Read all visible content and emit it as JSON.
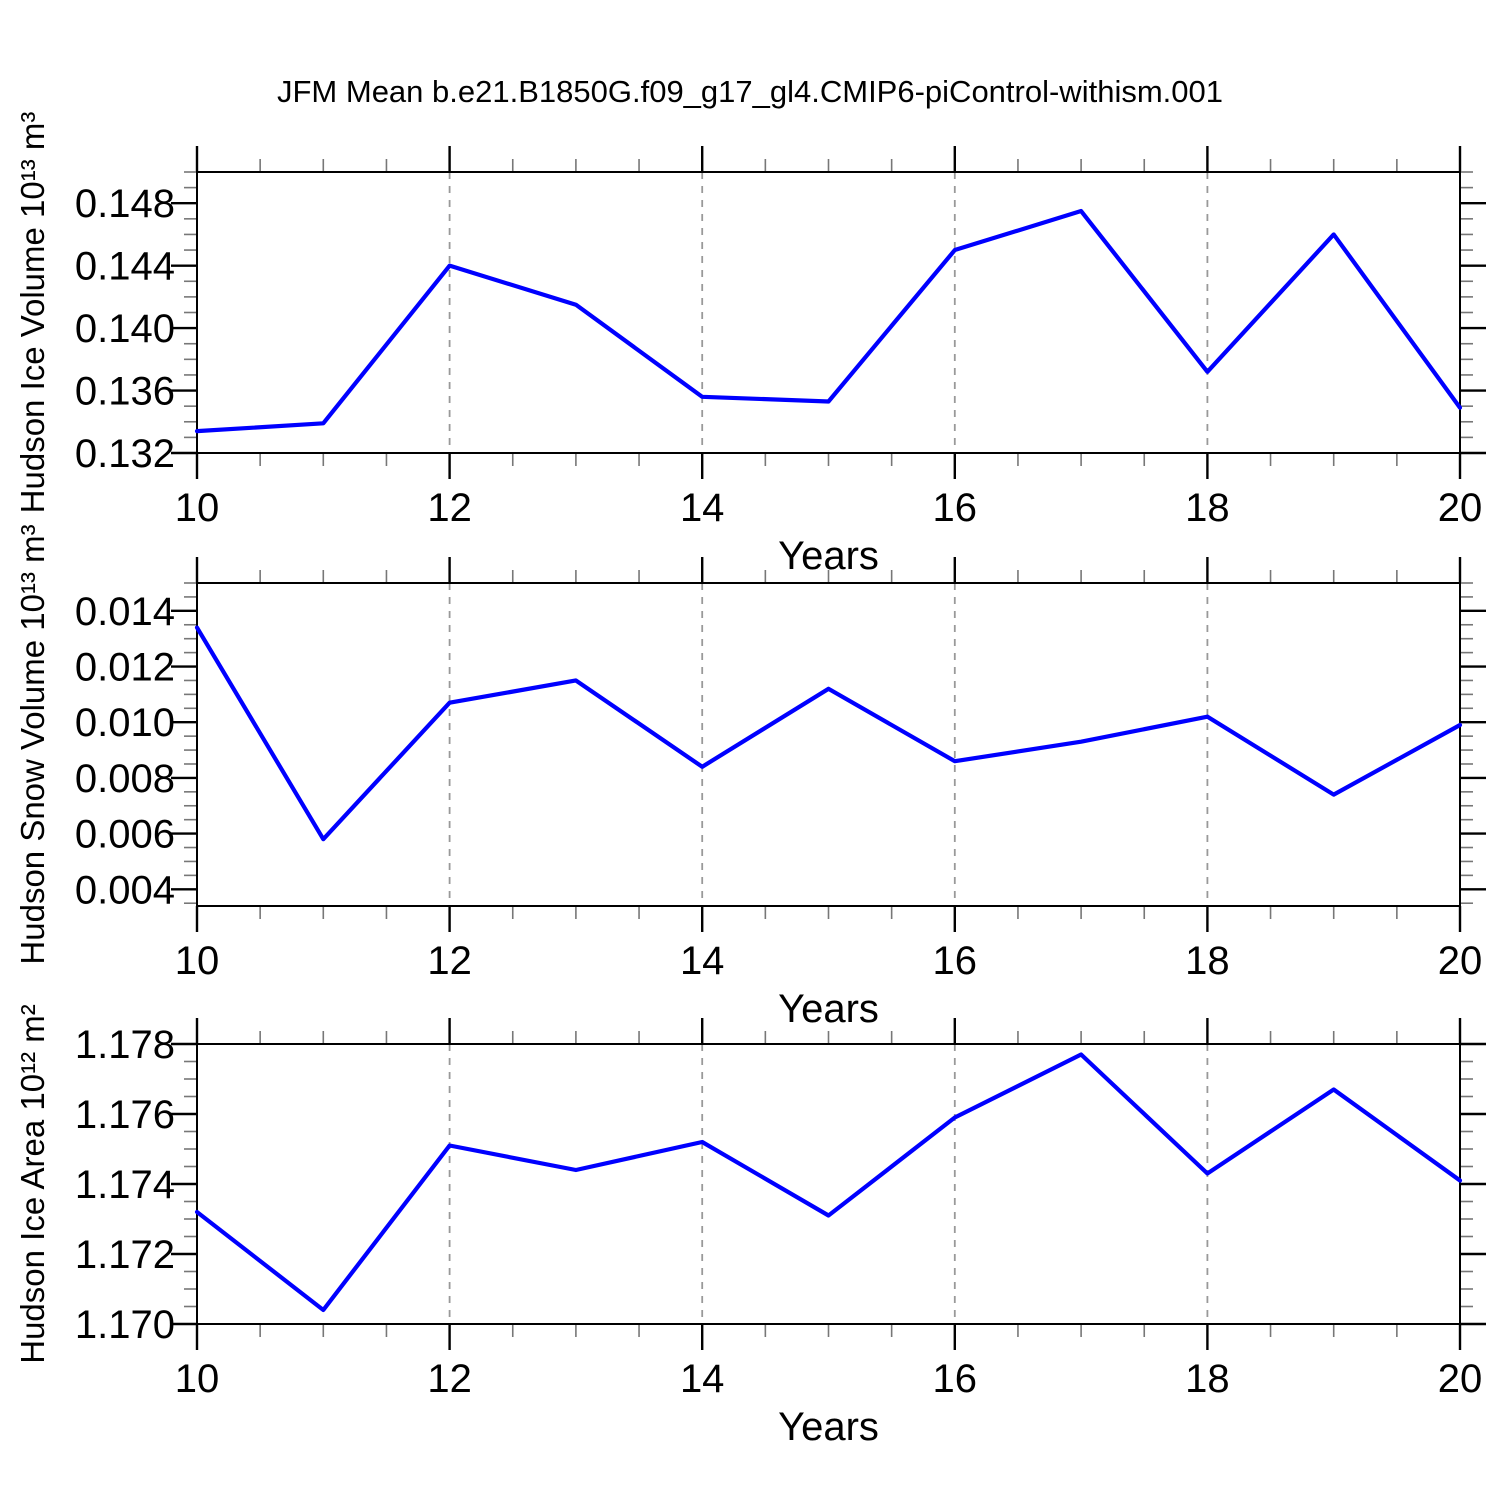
{
  "title": "JFM Mean b.e21.B1850G.f09_g17_gl4.CMIP6-piControl-withism.001",
  "styles": {
    "background": "#ffffff",
    "line_color": "#0000ff",
    "grid_color": "#999999",
    "axis_color": "#000000",
    "minor_tick_color": "#777777",
    "text_color": "#000000"
  },
  "xaxis": {
    "label": "Years",
    "ticks": [
      "10",
      "12",
      "14",
      "16",
      "18",
      "20"
    ],
    "tick_values": [
      10,
      12,
      14,
      16,
      18,
      20
    ],
    "minor_step": 0.5,
    "range": [
      10,
      20
    ],
    "gridlines": [
      12,
      14,
      16,
      18
    ]
  },
  "chart_data": [
    {
      "type": "line",
      "series_name": "Hudson Ice Volume",
      "ylabel": "Hudson Ice Volume 10¹³ m³",
      "xlabel": "Years",
      "x": [
        10,
        11,
        12,
        13,
        14,
        15,
        16,
        17,
        18,
        19,
        20
      ],
      "values": [
        0.1334,
        0.1339,
        0.144,
        0.1415,
        0.1356,
        0.1353,
        0.145,
        0.1475,
        0.1372,
        0.146,
        0.1349
      ],
      "xlim": [
        10,
        20
      ],
      "ylim": [
        0.132,
        0.15
      ],
      "yticks": [
        "0.132",
        "0.136",
        "0.140",
        "0.144",
        "0.148"
      ],
      "ytick_values": [
        0.132,
        0.136,
        0.14,
        0.144,
        0.148
      ],
      "y_minor_step": 0.001,
      "grid": true,
      "legend": "none"
    },
    {
      "type": "line",
      "series_name": "Hudson Snow Volume",
      "ylabel": "Hudson Snow Volume 10¹³ m³",
      "xlabel": "Years",
      "x": [
        10,
        11,
        12,
        13,
        14,
        15,
        16,
        17,
        18,
        19,
        20
      ],
      "values": [
        0.0134,
        0.0058,
        0.0107,
        0.0115,
        0.0084,
        0.0112,
        0.0086,
        0.0093,
        0.0102,
        0.0074,
        0.0099
      ],
      "xlim": [
        10,
        20
      ],
      "ylim": [
        0.0034,
        0.015
      ],
      "yticks": [
        "0.004",
        "0.006",
        "0.008",
        "0.010",
        "0.012",
        "0.014"
      ],
      "ytick_values": [
        0.004,
        0.006,
        0.008,
        0.01,
        0.012,
        0.014
      ],
      "y_minor_step": 0.0005,
      "grid": true,
      "legend": "none"
    },
    {
      "type": "line",
      "series_name": "Hudson Ice Area",
      "ylabel": "Hudson Ice Area 10¹² m²",
      "xlabel": "Years",
      "x": [
        10,
        11,
        12,
        13,
        14,
        15,
        16,
        17,
        18,
        19,
        20
      ],
      "values": [
        1.1732,
        1.1704,
        1.1751,
        1.1744,
        1.1752,
        1.1731,
        1.1759,
        1.1777,
        1.1743,
        1.1767,
        1.1741
      ],
      "xlim": [
        10,
        20
      ],
      "ylim": [
        1.17,
        1.178
      ],
      "yticks": [
        "1.170",
        "1.172",
        "1.174",
        "1.176",
        "1.178"
      ],
      "ytick_values": [
        1.17,
        1.172,
        1.174,
        1.176,
        1.178
      ],
      "y_minor_step": 0.0005,
      "grid": true,
      "legend": "none"
    }
  ]
}
